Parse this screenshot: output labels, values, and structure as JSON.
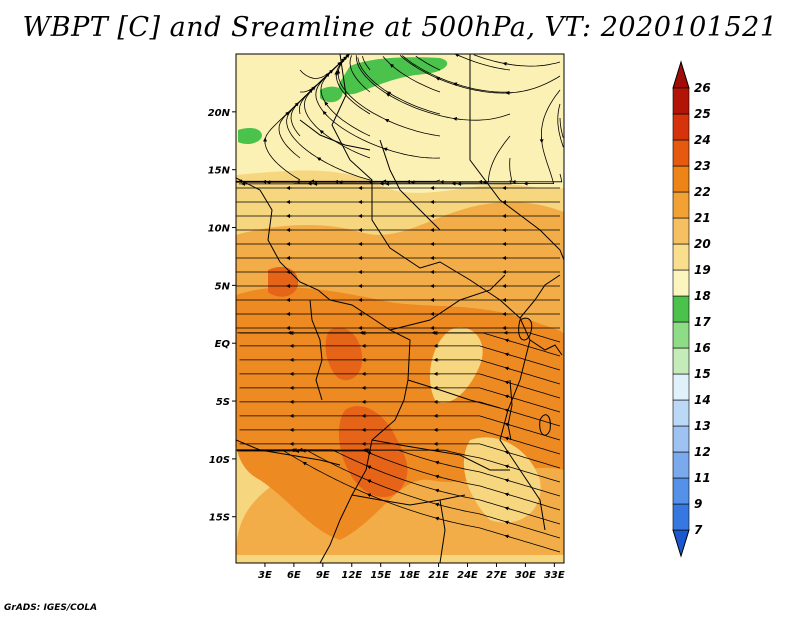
{
  "title": "WBPT [C] and Sreamline at 500hPa, VT: 2020101521",
  "credit": "GrADS: IGES/COLA",
  "map": {
    "lat_range": [
      -19,
      25
    ],
    "lon_range": [
      0,
      34
    ],
    "lat_ticks": [
      {
        "value": 20,
        "label": "20N"
      },
      {
        "value": 15,
        "label": "15N"
      },
      {
        "value": 10,
        "label": "10N"
      },
      {
        "value": 5,
        "label": "5N"
      },
      {
        "value": 0,
        "label": "EQ"
      },
      {
        "value": -5,
        "label": "5S"
      },
      {
        "value": -10,
        "label": "10S"
      },
      {
        "value": -15,
        "label": "15S"
      }
    ],
    "lon_ticks": [
      {
        "value": 3,
        "label": "3E"
      },
      {
        "value": 6,
        "label": "6E"
      },
      {
        "value": 9,
        "label": "9E"
      },
      {
        "value": 12,
        "label": "12E"
      },
      {
        "value": 15,
        "label": "15E"
      },
      {
        "value": 18,
        "label": "18E"
      },
      {
        "value": 21,
        "label": "21E"
      },
      {
        "value": 24,
        "label": "24E"
      },
      {
        "value": 27,
        "label": "27E"
      },
      {
        "value": 30,
        "label": "30E"
      },
      {
        "value": 33,
        "label": "33E"
      }
    ]
  },
  "colorbar": {
    "levels": [
      {
        "label": "7",
        "color": "#1f5fd6"
      },
      {
        "label": "9",
        "color": "#3778e0"
      },
      {
        "label": "11",
        "color": "#5591e8"
      },
      {
        "label": "12",
        "color": "#7aa9ee"
      },
      {
        "label": "13",
        "color": "#9ec3f3"
      },
      {
        "label": "14",
        "color": "#bcd8f7"
      },
      {
        "label": "15",
        "color": "#e1f1fb"
      },
      {
        "label": "16",
        "color": "#c4ecb8"
      },
      {
        "label": "17",
        "color": "#8fdc86"
      },
      {
        "label": "18",
        "color": "#4bc24b"
      },
      {
        "label": "19",
        "color": "#fcf6be"
      },
      {
        "label": "20",
        "color": "#f9de8e"
      },
      {
        "label": "21",
        "color": "#f5c062"
      },
      {
        "label": "22",
        "color": "#f2a134"
      },
      {
        "label": "23",
        "color": "#ee8418"
      },
      {
        "label": "24",
        "color": "#e65a10"
      },
      {
        "label": "25",
        "color": "#d6330c"
      },
      {
        "label": "26",
        "color": "#b21408"
      }
    ],
    "under_color": "#1a58d0",
    "over_color": "#a00d07"
  },
  "fields": {
    "cool_green": "#4bc24b",
    "pale_yellow": "#fcf1b4",
    "light_orange": "#f7d680",
    "mid_orange": "#f3ad48",
    "dark_orange": "#ee8a22",
    "red_orange": "#e66418"
  }
}
